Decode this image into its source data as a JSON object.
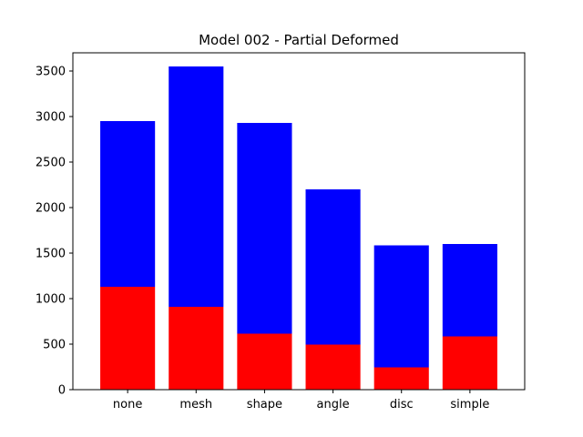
{
  "chart_data": {
    "type": "bar",
    "stacked": true,
    "title": "Model 002 - Partial Deformed",
    "xlabel": "",
    "ylabel": "",
    "categories": [
      "none",
      "mesh",
      "shape",
      "angle",
      "disc",
      "simple"
    ],
    "ylim": [
      0,
      3700
    ],
    "yticks": [
      0,
      500,
      1000,
      1500,
      2000,
      2500,
      3000,
      3500
    ],
    "grid": false,
    "legend": "none",
    "series": [
      {
        "color": "#ff0000",
        "values": [
          1130,
          910,
          615,
          495,
          245,
          585
        ]
      },
      {
        "color": "#0000ff",
        "values": [
          1820,
          2640,
          2315,
          1705,
          1340,
          1015
        ]
      }
    ]
  }
}
